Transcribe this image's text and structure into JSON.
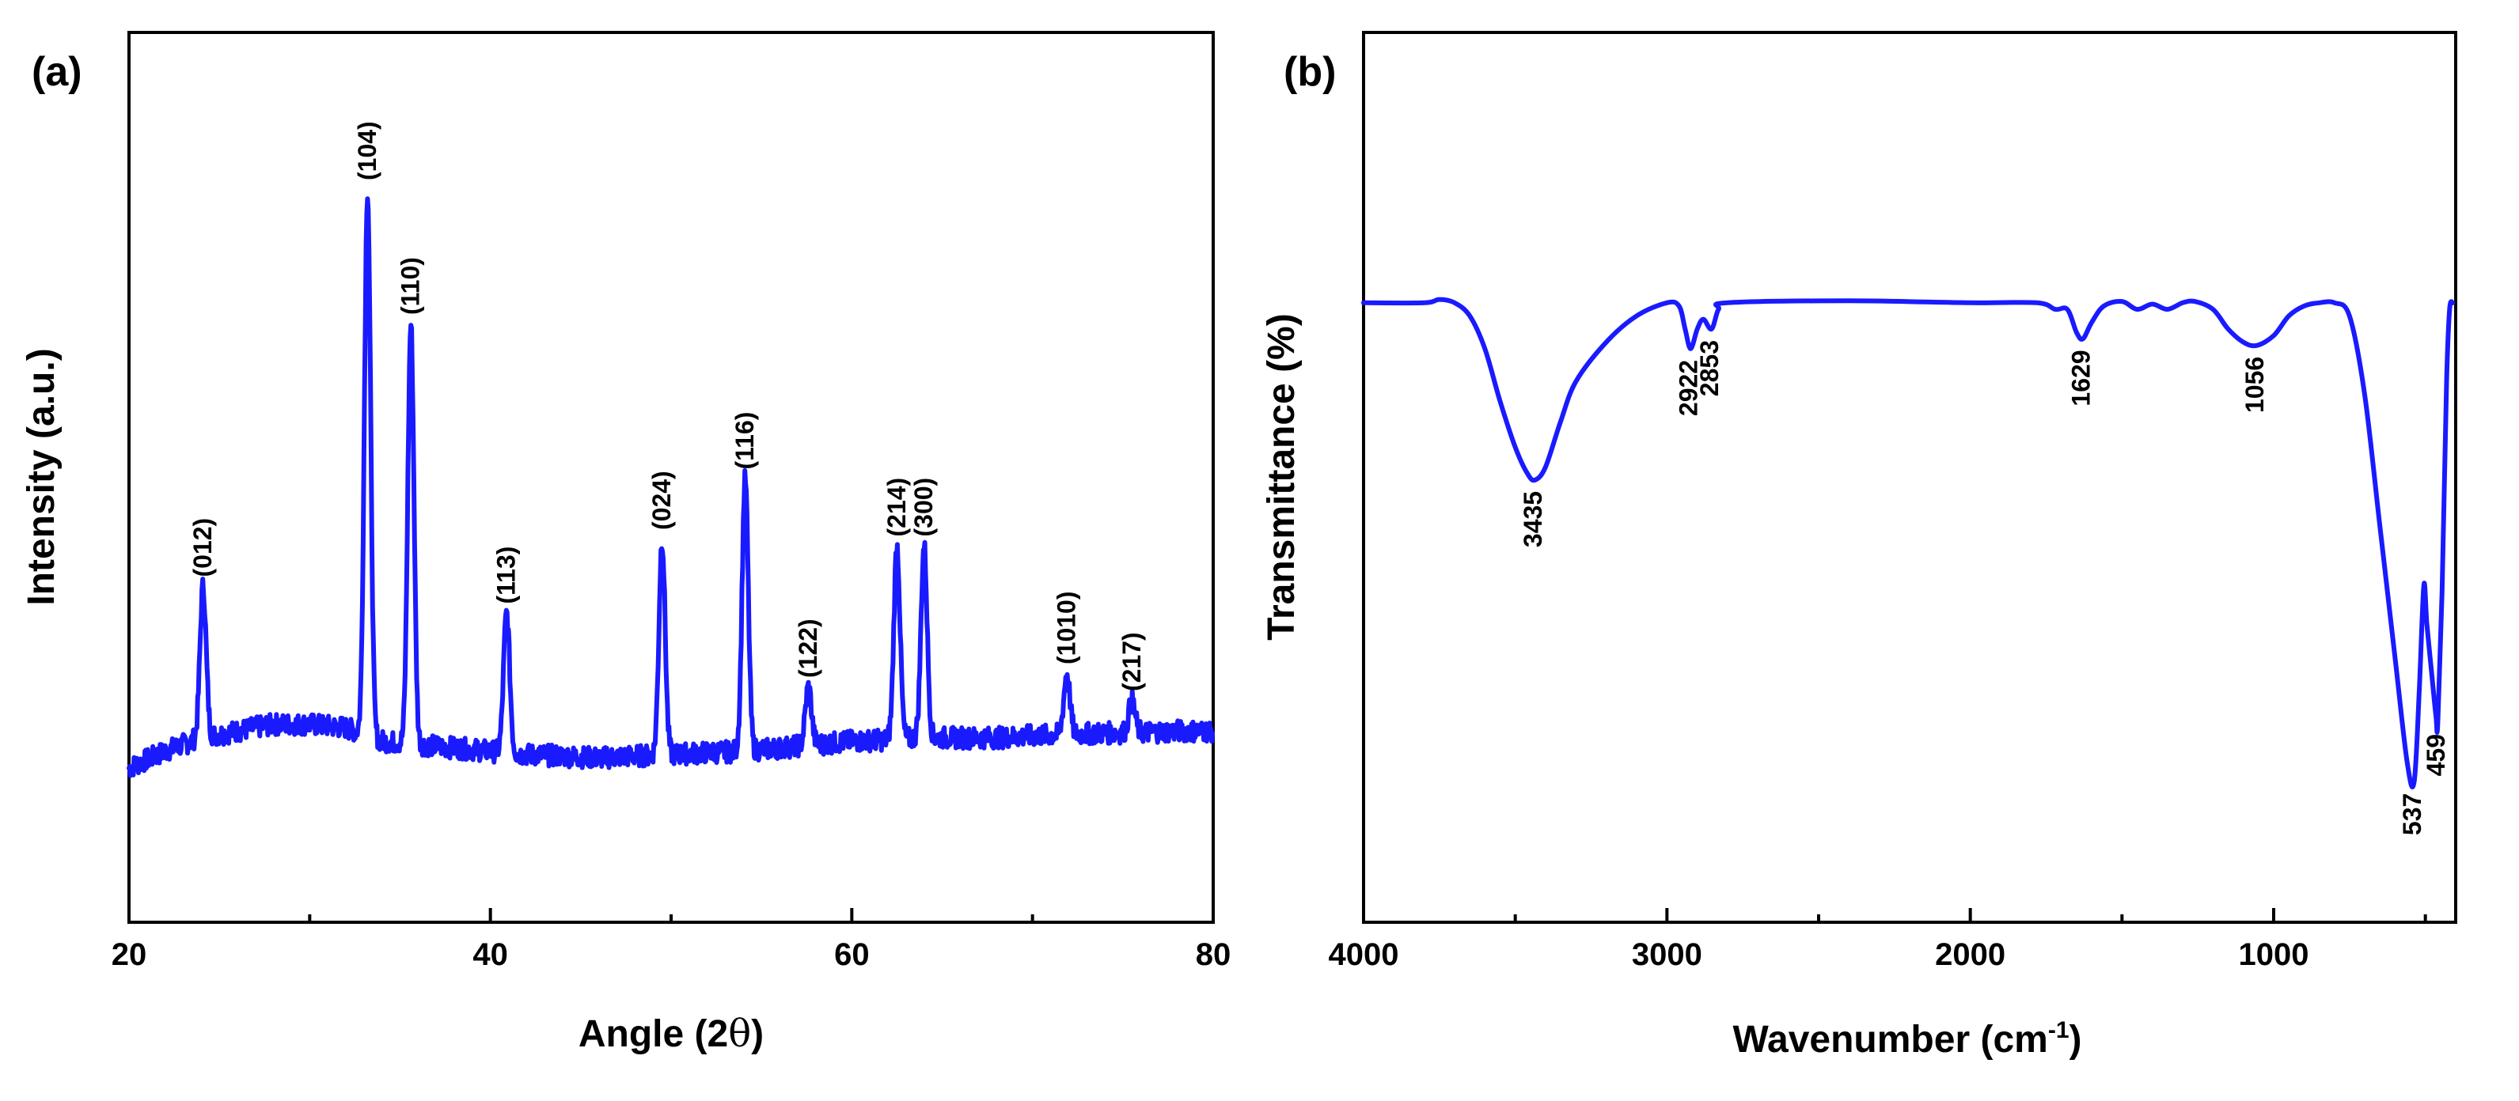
{
  "colors": {
    "line": "#1a1aff",
    "axes": "#000000",
    "background": "#ffffff"
  },
  "chart_data": [
    {
      "panel_label": "(a)",
      "type": "line",
      "title": "",
      "xlabel_main": "Angle (2",
      "xlabel_symbol": "θ",
      "xlabel_close": ")",
      "ylabel": "Intensity (a.u.)",
      "xlim": [
        20,
        80
      ],
      "ylim": [
        0,
        100
      ],
      "x_ticks": [
        "20",
        "40",
        "60",
        "80"
      ],
      "y_ticks": [],
      "baseline": [
        {
          "x": 20,
          "y": 14
        },
        {
          "x": 22,
          "y": 16.5
        },
        {
          "x": 24,
          "y": 18.5
        },
        {
          "x": 26,
          "y": 19.5
        },
        {
          "x": 28,
          "y": 20.5
        },
        {
          "x": 30,
          "y": 20.5
        },
        {
          "x": 32,
          "y": 20
        },
        {
          "x": 34,
          "y": 18
        },
        {
          "x": 36,
          "y": 17.5
        },
        {
          "x": 38,
          "y": 17
        },
        {
          "x": 40,
          "y": 16.5
        },
        {
          "x": 42,
          "y": 16
        },
        {
          "x": 44,
          "y": 15.8
        },
        {
          "x": 46,
          "y": 15.5
        },
        {
          "x": 48,
          "y": 15.8
        },
        {
          "x": 50,
          "y": 16
        },
        {
          "x": 52,
          "y": 16.3
        },
        {
          "x": 54,
          "y": 16.5
        },
        {
          "x": 56,
          "y": 17
        },
        {
          "x": 58,
          "y": 17.5
        },
        {
          "x": 60,
          "y": 18
        },
        {
          "x": 62,
          "y": 18.2
        },
        {
          "x": 64,
          "y": 18.5
        },
        {
          "x": 66,
          "y": 18.5
        },
        {
          "x": 68,
          "y": 18.5
        },
        {
          "x": 70,
          "y": 18.8
        },
        {
          "x": 72,
          "y": 19
        },
        {
          "x": 74,
          "y": 19.2
        },
        {
          "x": 76,
          "y": 19.3
        },
        {
          "x": 78,
          "y": 19.5
        },
        {
          "x": 80,
          "y": 19.5
        }
      ],
      "peaks": [
        {
          "label": "(012)",
          "x": 24.1,
          "y": 41
        },
        {
          "label": "(104)",
          "x": 33.2,
          "y": 100
        },
        {
          "label": "(110)",
          "x": 35.6,
          "y": 80
        },
        {
          "label": "(113)",
          "x": 40.9,
          "y": 37
        },
        {
          "label": "(024)",
          "x": 49.5,
          "y": 48
        },
        {
          "label": "(116)",
          "x": 54.1,
          "y": 57
        },
        {
          "label": "(122)",
          "x": 57.6,
          "y": 26
        },
        {
          "label": "(214)",
          "x": 62.5,
          "y": 47
        },
        {
          "label": "(300)",
          "x": 64.0,
          "y": 47
        },
        {
          "label": "(1010)",
          "x": 71.9,
          "y": 28
        },
        {
          "label": "(217)",
          "x": 75.5,
          "y": 24
        }
      ]
    },
    {
      "panel_label": "(b)",
      "type": "line",
      "title": "",
      "xlabel_main": "Wavenumber (cm",
      "xlabel_sup": "-1",
      "xlabel_close": ")",
      "ylabel": "Transmittance (%)",
      "xlim": [
        4000,
        400
      ],
      "ylim": [
        0,
        100
      ],
      "x_ticks": [
        "4000",
        "3000",
        "2000",
        "1000"
      ],
      "y_ticks": [],
      "series": [
        {
          "x": 4000,
          "y": 84
        },
        {
          "x": 3800,
          "y": 84
        },
        {
          "x": 3750,
          "y": 84.5
        },
        {
          "x": 3700,
          "y": 84
        },
        {
          "x": 3650,
          "y": 82
        },
        {
          "x": 3600,
          "y": 77
        },
        {
          "x": 3550,
          "y": 69
        },
        {
          "x": 3500,
          "y": 62
        },
        {
          "x": 3460,
          "y": 58
        },
        {
          "x": 3435,
          "y": 57
        },
        {
          "x": 3400,
          "y": 59
        },
        {
          "x": 3350,
          "y": 66
        },
        {
          "x": 3300,
          "y": 72
        },
        {
          "x": 3200,
          "y": 78
        },
        {
          "x": 3100,
          "y": 82
        },
        {
          "x": 3000,
          "y": 84
        },
        {
          "x": 2960,
          "y": 83.5
        },
        {
          "x": 2940,
          "y": 80
        },
        {
          "x": 2922,
          "y": 77
        },
        {
          "x": 2900,
          "y": 80
        },
        {
          "x": 2880,
          "y": 81.5
        },
        {
          "x": 2853,
          "y": 80
        },
        {
          "x": 2830,
          "y": 83
        },
        {
          "x": 2800,
          "y": 84
        },
        {
          "x": 2400,
          "y": 84.3
        },
        {
          "x": 2000,
          "y": 84
        },
        {
          "x": 1780,
          "y": 84
        },
        {
          "x": 1720,
          "y": 83
        },
        {
          "x": 1680,
          "y": 83
        },
        {
          "x": 1650,
          "y": 79.5
        },
        {
          "x": 1629,
          "y": 78.5
        },
        {
          "x": 1600,
          "y": 81
        },
        {
          "x": 1560,
          "y": 83.5
        },
        {
          "x": 1500,
          "y": 84.2
        },
        {
          "x": 1450,
          "y": 83
        },
        {
          "x": 1400,
          "y": 83.8
        },
        {
          "x": 1350,
          "y": 83
        },
        {
          "x": 1300,
          "y": 84
        },
        {
          "x": 1260,
          "y": 84.2
        },
        {
          "x": 1200,
          "y": 83
        },
        {
          "x": 1150,
          "y": 80
        },
        {
          "x": 1100,
          "y": 78
        },
        {
          "x": 1056,
          "y": 77.5
        },
        {
          "x": 1000,
          "y": 79
        },
        {
          "x": 950,
          "y": 82
        },
        {
          "x": 900,
          "y": 83.5
        },
        {
          "x": 850,
          "y": 84
        },
        {
          "x": 800,
          "y": 84
        },
        {
          "x": 750,
          "y": 82
        },
        {
          "x": 700,
          "y": 70
        },
        {
          "x": 650,
          "y": 50
        },
        {
          "x": 600,
          "y": 30
        },
        {
          "x": 560,
          "y": 14
        },
        {
          "x": 537,
          "y": 11
        },
        {
          "x": 520,
          "y": 25
        },
        {
          "x": 505,
          "y": 41
        },
        {
          "x": 495,
          "y": 35
        },
        {
          "x": 480,
          "y": 28
        },
        {
          "x": 465,
          "y": 21
        },
        {
          "x": 459,
          "y": 20
        },
        {
          "x": 445,
          "y": 40
        },
        {
          "x": 430,
          "y": 72
        },
        {
          "x": 420,
          "y": 83
        },
        {
          "x": 410,
          "y": 84
        }
      ],
      "annotations": [
        {
          "label": "3435",
          "x": 3435,
          "y": 57
        },
        {
          "label": "2922",
          "x": 2922,
          "y": 77
        },
        {
          "label": "2853",
          "x": 2853,
          "y": 80
        },
        {
          "label": "1629",
          "x": 1629,
          "y": 78.5
        },
        {
          "label": "1056",
          "x": 1056,
          "y": 77.5
        },
        {
          "label": "537",
          "x": 537,
          "y": 11
        },
        {
          "label": "459",
          "x": 459,
          "y": 20
        }
      ]
    }
  ]
}
